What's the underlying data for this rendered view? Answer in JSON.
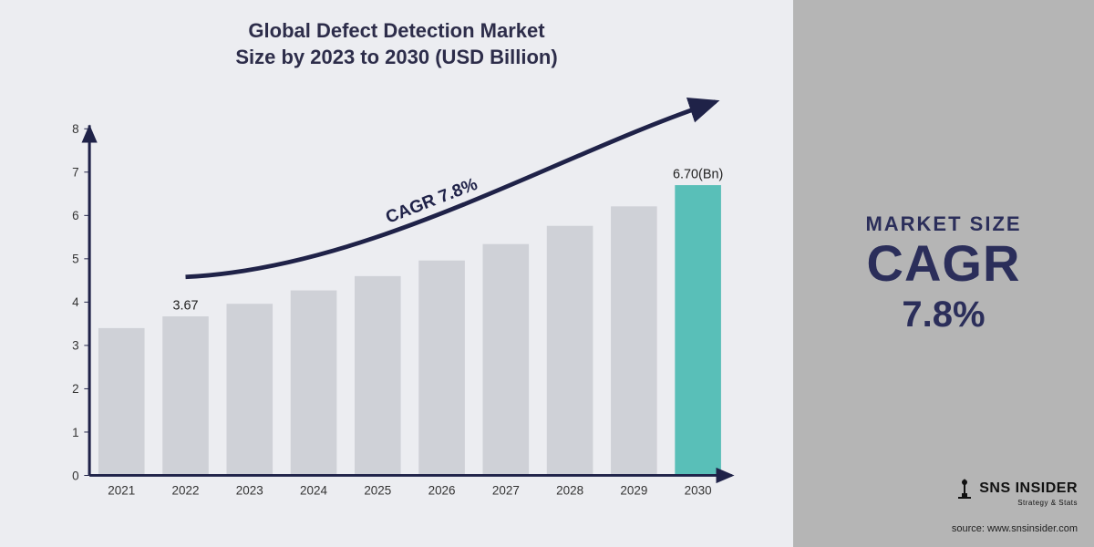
{
  "title_line1": "Global Defect Detection Market",
  "title_line2": "Size by 2023 to 2030 (USD Billion)",
  "chart": {
    "type": "bar",
    "categories": [
      "2021",
      "2022",
      "2023",
      "2024",
      "2025",
      "2026",
      "2027",
      "2028",
      "2029",
      "2030"
    ],
    "values": [
      3.4,
      3.67,
      3.96,
      4.27,
      4.6,
      4.96,
      5.34,
      5.76,
      6.21,
      6.7
    ],
    "bar_colors": [
      "#cfd1d7",
      "#cfd1d7",
      "#cfd1d7",
      "#cfd1d7",
      "#cfd1d7",
      "#cfd1d7",
      "#cfd1d7",
      "#cfd1d7",
      "#cfd1d7",
      "#59bfb8"
    ],
    "ylim": [
      0,
      8
    ],
    "ytick_step": 1,
    "axis_color": "#1f2248",
    "axis_width": 3,
    "tick_font_size": 14,
    "tick_color": "#333333",
    "bar_width": 0.72,
    "background_color": "#ecedf1",
    "curve_color": "#1f2248",
    "curve_width": 5,
    "curve_label": "CAGR 7.8%",
    "curve_label_fontsize": 20,
    "value_labels": {
      "1": "3.67",
      "9": "6.70(Bn)"
    },
    "value_label_fontsize": 15,
    "value_label_color": "#222222"
  },
  "right": {
    "line1": "MARKET SIZE",
    "line2": "CAGR",
    "line3": "7.8%",
    "bg_color": "#b5b5b5",
    "text_color": "#2b2e5a"
  },
  "logo": {
    "name": "SNS INSIDER",
    "tagline": "Strategy & Stats"
  },
  "source": "source: www.snsinsider.com"
}
